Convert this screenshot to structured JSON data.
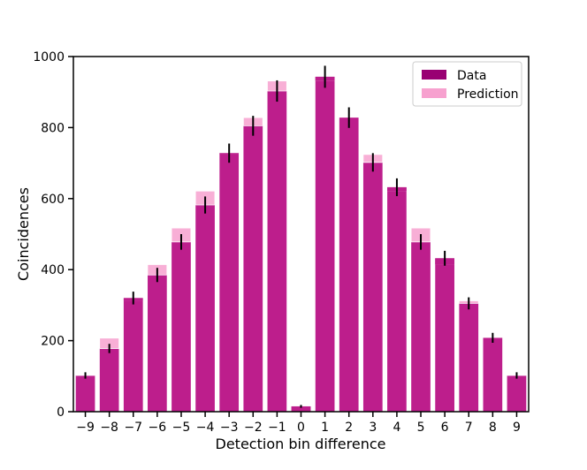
{
  "chart_data": {
    "type": "bar",
    "xlabel": "Detection bin difference",
    "ylabel": "Coincidences",
    "ylim": [
      0,
      1000
    ],
    "yticks": [
      0,
      200,
      400,
      600,
      800,
      1000
    ],
    "categories": [
      "−9",
      "−8",
      "−7",
      "−6",
      "−5",
      "−4",
      "−3",
      "−2",
      "−1",
      "0",
      "1",
      "2",
      "3",
      "4",
      "5",
      "6",
      "7",
      "8",
      "9"
    ],
    "series": [
      {
        "name": "Data",
        "color": "#990073",
        "values": [
          102,
          178,
          320,
          385,
          478,
          582,
          728,
          805,
          903,
          15,
          943,
          828,
          702,
          632,
          478,
          432,
          305,
          208,
          102
        ],
        "errors": [
          9,
          13,
          18,
          20,
          22,
          24,
          27,
          28,
          30,
          4,
          31,
          29,
          26,
          25,
          22,
          21,
          17,
          14,
          9
        ]
      },
      {
        "name": "Prediction",
        "color": "#f7a1cf",
        "values": [
          103,
          207,
          312,
          414,
          517,
          621,
          724,
          828,
          931,
          0,
          931,
          828,
          724,
          621,
          517,
          414,
          312,
          207,
          103
        ]
      }
    ],
    "legend_position": "top-right",
    "grid": false
  }
}
